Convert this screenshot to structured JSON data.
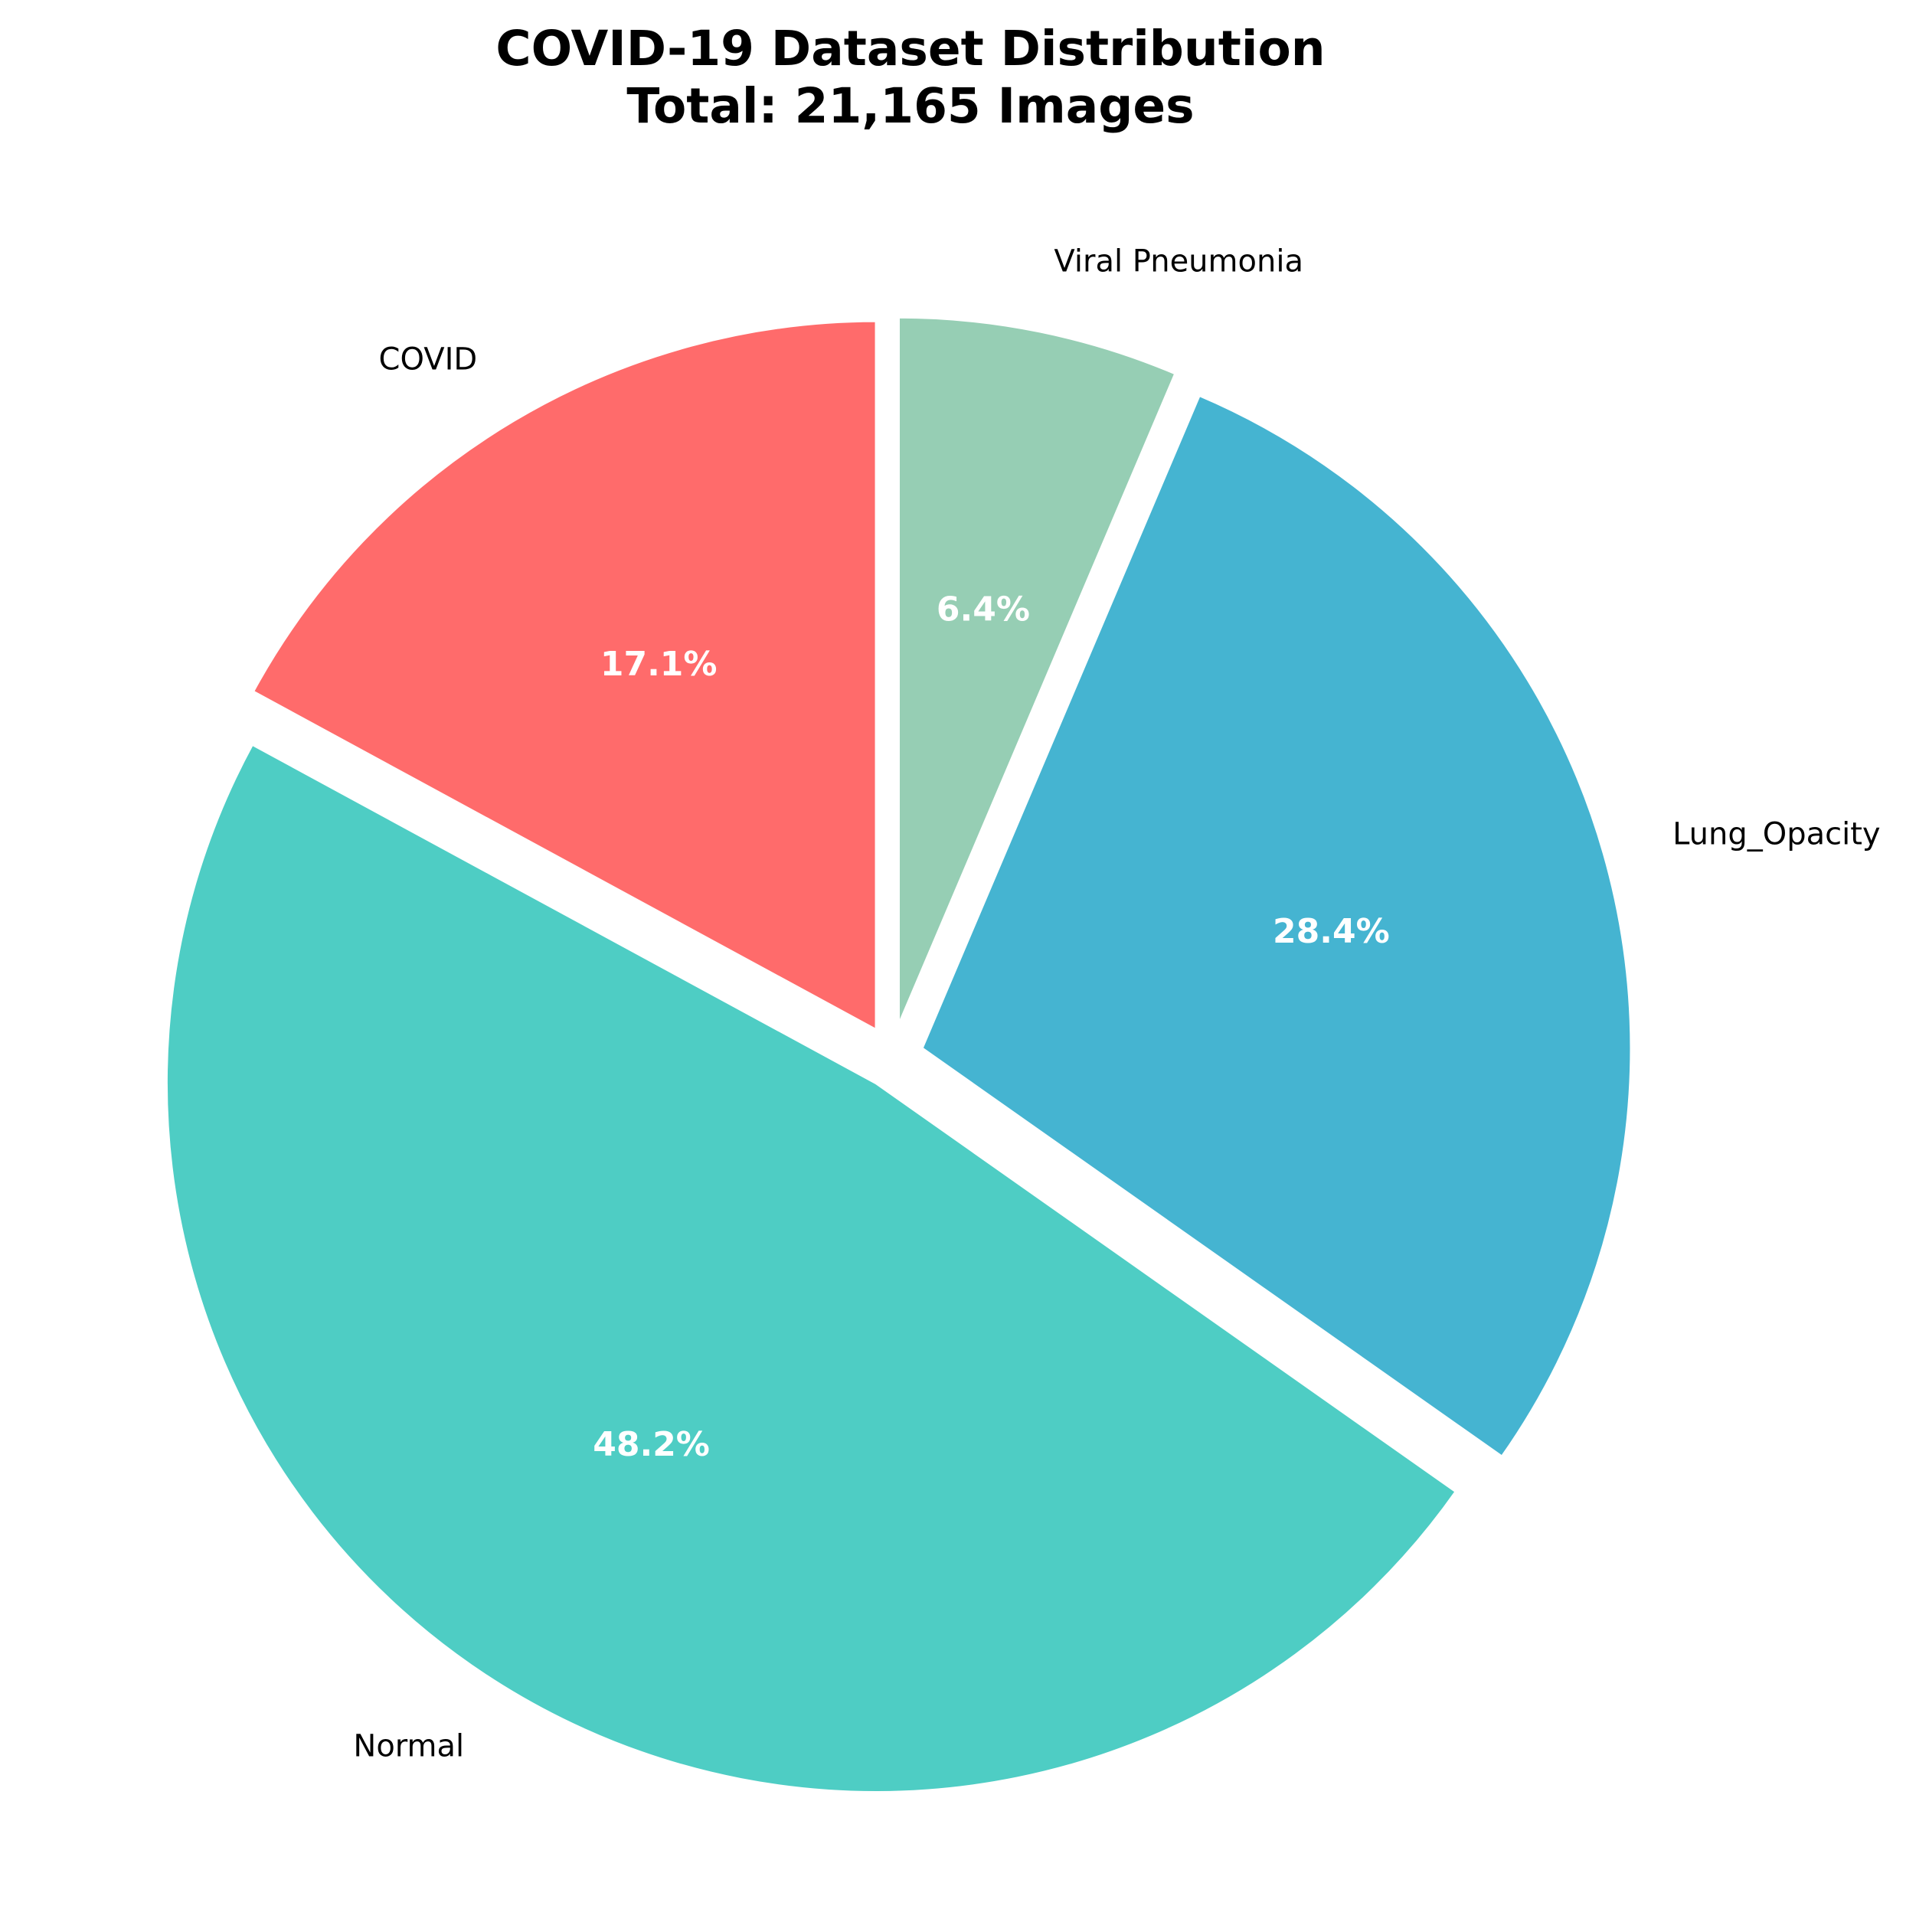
{
  "chart_data": {
    "type": "pie",
    "title_lines": [
      "COVID-19 Dataset Distribution",
      "Total: 21,165 Images"
    ],
    "slices": [
      {
        "label": "COVID",
        "percent": 17.1,
        "percent_label": "17.1%",
        "color": "#FF6B6B"
      },
      {
        "label": "Normal",
        "percent": 48.2,
        "percent_label": "48.2%",
        "color": "#4ECDC4"
      },
      {
        "label": "Lung_Opacity",
        "percent": 28.4,
        "percent_label": "28.4%",
        "color": "#45B4D1"
      },
      {
        "label": "Viral Pneumonia",
        "percent": 6.4,
        "percent_label": "6.4%",
        "color": "#96CEB4"
      }
    ],
    "start": "top",
    "direction": "counterclockwise",
    "exploded": true
  }
}
